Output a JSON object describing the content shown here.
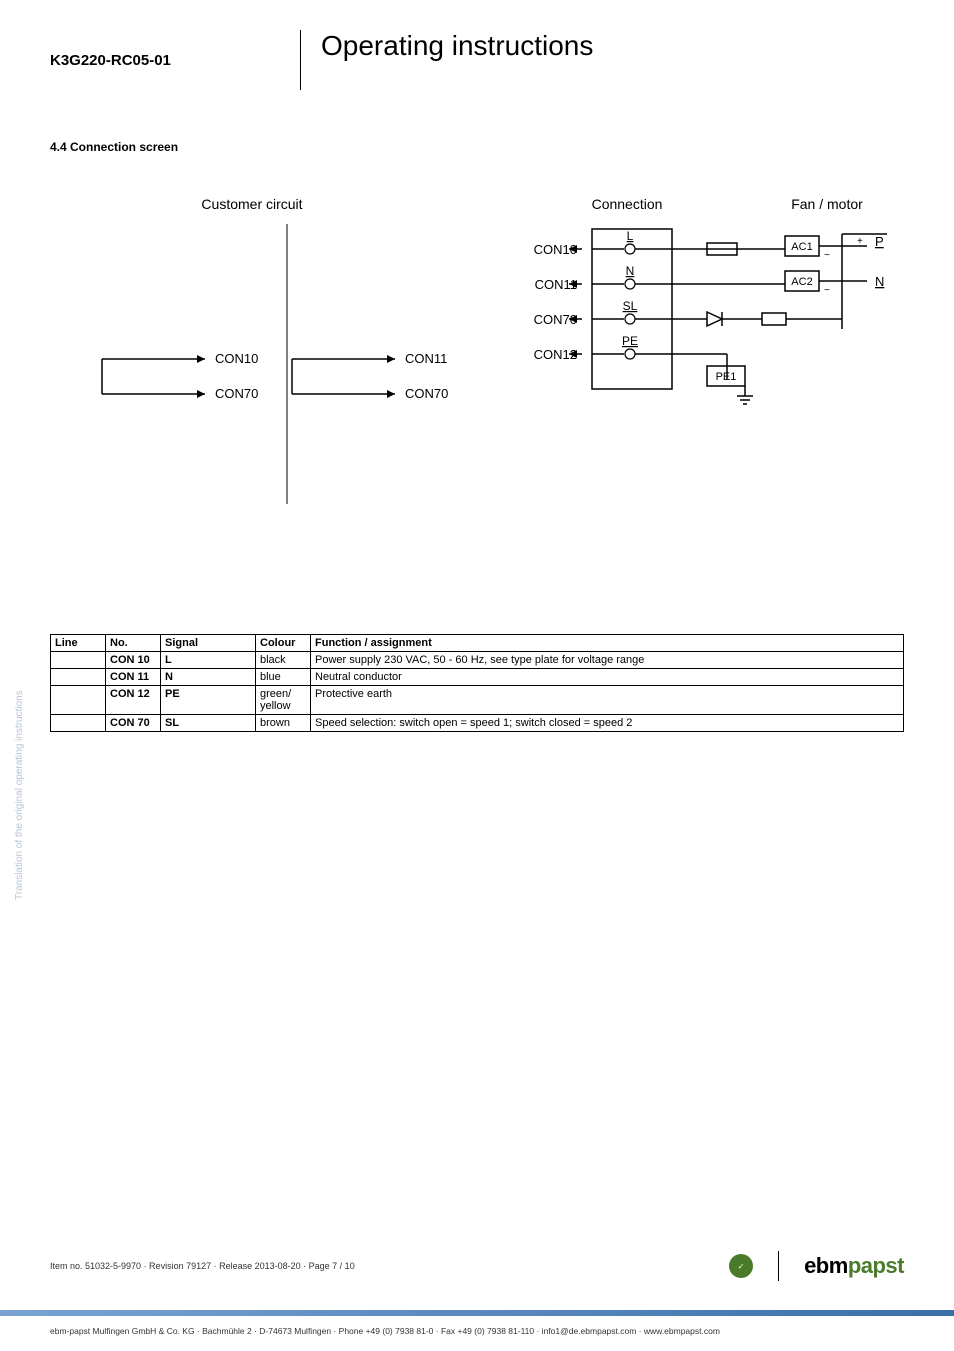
{
  "header": {
    "product_code": "K3G220-RC05-01",
    "title": "Operating instructions"
  },
  "section": {
    "heading": "4.4 Connection screen"
  },
  "diagram": {
    "customer_circuit_label": "Customer circuit",
    "connection_label": "Connection",
    "fan_motor_label": "Fan / motor",
    "left_sw1_out1": "CON10",
    "left_sw1_out2": "CON70",
    "left_sw2_out1": "CON11",
    "left_sw2_out2": "CON70",
    "conn_rows": [
      {
        "left": "CON10",
        "mid": "L"
      },
      {
        "left": "CON11",
        "mid": "N"
      },
      {
        "left": "CON70",
        "mid": "SL"
      },
      {
        "left": "CON12",
        "mid": "PE"
      }
    ],
    "ac1": "AC1",
    "ac2": "AC2",
    "p": "P",
    "n": "N",
    "pe1": "PE1"
  },
  "table": {
    "headers": {
      "line": "Line",
      "no": "No.",
      "signal": "Signal",
      "colour": "Colour",
      "func": "Function / assignment"
    },
    "rows": [
      {
        "line": "",
        "no": "CON 10",
        "signal": "L",
        "colour": "black",
        "func": "Power supply 230 VAC, 50 - 60 Hz, see type plate for voltage range"
      },
      {
        "line": "",
        "no": "CON 11",
        "signal": "N",
        "colour": "blue",
        "func": "Neutral conductor"
      },
      {
        "line": "",
        "no": "CON 12",
        "signal": "PE",
        "colour": "green/yellow",
        "func": "Protective earth"
      },
      {
        "line": "",
        "no": "CON 70",
        "signal": "SL",
        "colour": "brown",
        "func": "Speed selection: switch open = speed 1; switch closed = speed 2"
      }
    ]
  },
  "side_text": "Translation of the original operating instructions",
  "footer": {
    "left": "Item no. 51032-5-9970 · Revision 79127 · Release 2013-08-20 · Page 7 / 10",
    "logo_ebm": "ebm",
    "logo_papst": "papst",
    "badge": "green tech"
  },
  "bottom_text": "ebm-papst Mulfingen GmbH & Co. KG · Bachmühle 2 · D-74673 Mulfingen · Phone +49 (0) 7938 81-0 · Fax +49 (0) 7938 81-110 · info1@de.ebmpapst.com · www.ebmpapst.com"
}
